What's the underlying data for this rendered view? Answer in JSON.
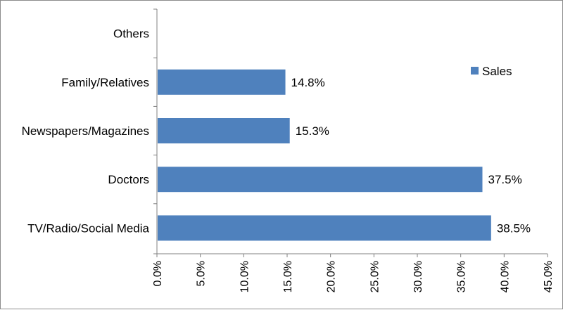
{
  "chart_data": {
    "type": "bar",
    "orientation": "horizontal",
    "categories": [
      "Others",
      "Family/Relatives",
      "Newspapers/Magazines",
      "Doctors",
      "TV/Radio/Social Media"
    ],
    "series": [
      {
        "name": "Sales",
        "values": [
          0,
          14.8,
          15.3,
          37.5,
          38.5
        ],
        "value_labels": [
          "",
          "14.8%",
          "15.3%",
          "37.5%",
          "38.5%"
        ]
      }
    ],
    "x_ticks": [
      0,
      5,
      10,
      15,
      20,
      25,
      30,
      35,
      40,
      45
    ],
    "x_tick_labels": [
      "0.0%",
      "5.0%",
      "10.0%",
      "15.0%",
      "20.0%",
      "25.0%",
      "30.0%",
      "35.0%",
      "40.0%",
      "45.0%"
    ],
    "xlim": [
      0,
      45
    ],
    "title": "",
    "xlabel": "",
    "ylabel": "",
    "grid": false,
    "legend": {
      "position": "top-right"
    },
    "colors": {
      "bar": "#4f81bd",
      "axis": "#808080",
      "frame": "#8c8c8c"
    }
  }
}
